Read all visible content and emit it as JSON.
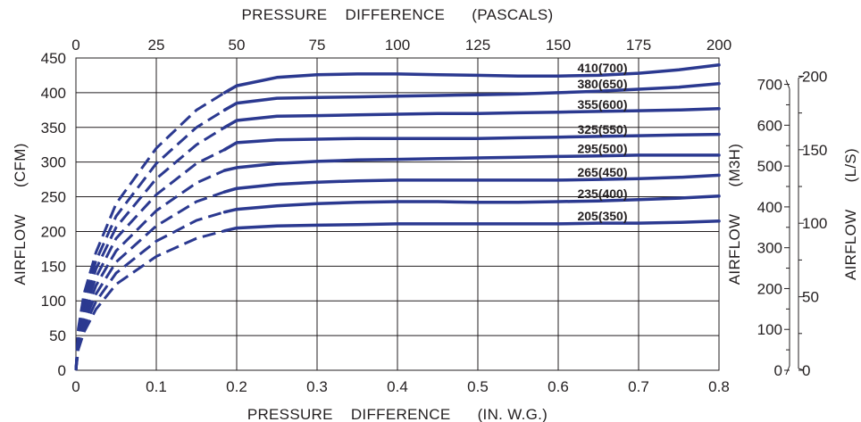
{
  "chart_data": {
    "type": "line",
    "title": "",
    "x_bottom": {
      "label": "PRESSURE    DIFFERENCE      (IN. W.G.)",
      "range": [
        0,
        0.8
      ],
      "ticks": [
        "0",
        "0.1",
        "0.2",
        "0.3",
        "0.4",
        "0.5",
        "0.6",
        "0.7",
        "0.8"
      ]
    },
    "x_top": {
      "label": "PRESSURE    DIFFERENCE      (PASCALS)",
      "range": [
        0,
        200
      ],
      "ticks": [
        "0",
        "25",
        "50",
        "75",
        "100",
        "125",
        "150",
        "175",
        "200"
      ]
    },
    "y_left": {
      "label": "AIRFLOW      (CFM)",
      "range": [
        0,
        450
      ],
      "ticks": [
        "0",
        "50",
        "100",
        "150",
        "200",
        "250",
        "300",
        "350",
        "400",
        "450"
      ]
    },
    "y_right_m3h": {
      "label": "AIRFLOW      (M3H)",
      "range": [
        0,
        764.6
      ],
      "ticks": [
        "0",
        "100",
        "200",
        "300",
        "400",
        "500",
        "600",
        "700"
      ]
    },
    "y_right_ls": {
      "label": "AIRFLOW      (L/S)",
      "range": [
        0,
        212.4
      ],
      "ticks": [
        "0",
        "50",
        "100",
        "150",
        "200"
      ]
    },
    "grid": true,
    "line_color": "#2b3990",
    "grid_color": "#231f20",
    "note": "",
    "series": [
      {
        "name": "410(700)",
        "dashed": {
          "x": [
            0,
            0.003,
            0.01,
            0.025,
            0.05,
            0.1,
            0.15,
            0.185
          ],
          "y": [
            0,
            60,
            110,
            170,
            240,
            320,
            375,
            400
          ]
        },
        "solid": {
          "x": [
            0.185,
            0.2,
            0.25,
            0.3,
            0.35,
            0.4,
            0.45,
            0.5,
            0.55,
            0.6,
            0.65,
            0.7,
            0.75,
            0.8
          ],
          "y": [
            400,
            410,
            422,
            426,
            427,
            427,
            426,
            425,
            424,
            424,
            425,
            428,
            433,
            440
          ]
        }
      },
      {
        "name": "380(650)",
        "dashed": {
          "x": [
            0,
            0.003,
            0.01,
            0.025,
            0.05,
            0.1,
            0.15,
            0.185
          ],
          "y": [
            0,
            55,
            100,
            158,
            222,
            298,
            350,
            375
          ]
        },
        "solid": {
          "x": [
            0.185,
            0.2,
            0.25,
            0.3,
            0.35,
            0.4,
            0.45,
            0.5,
            0.55,
            0.6,
            0.65,
            0.7,
            0.75,
            0.8
          ],
          "y": [
            375,
            385,
            392,
            393,
            394,
            395,
            396,
            397,
            398,
            400,
            402,
            405,
            408,
            413
          ]
        }
      },
      {
        "name": "355(600)",
        "dashed": {
          "x": [
            0,
            0.003,
            0.01,
            0.025,
            0.05,
            0.1,
            0.15,
            0.185
          ],
          "y": [
            0,
            50,
            92,
            146,
            206,
            276,
            325,
            350
          ]
        },
        "solid": {
          "x": [
            0.185,
            0.2,
            0.25,
            0.3,
            0.35,
            0.4,
            0.45,
            0.5,
            0.55,
            0.6,
            0.65,
            0.7,
            0.75,
            0.8
          ],
          "y": [
            350,
            360,
            366,
            367,
            368,
            369,
            370,
            370,
            371,
            372,
            373,
            374,
            375,
            377
          ]
        }
      },
      {
        "name": "325(550)",
        "dashed": {
          "x": [
            0,
            0.003,
            0.01,
            0.025,
            0.05,
            0.1,
            0.15,
            0.185
          ],
          "y": [
            0,
            46,
            84,
            134,
            190,
            253,
            298,
            318
          ]
        },
        "solid": {
          "x": [
            0.185,
            0.2,
            0.25,
            0.3,
            0.35,
            0.4,
            0.45,
            0.5,
            0.55,
            0.6,
            0.65,
            0.7,
            0.75,
            0.8
          ],
          "y": [
            318,
            328,
            332,
            333,
            334,
            334,
            334,
            334,
            335,
            336,
            337,
            338,
            339,
            340
          ]
        }
      },
      {
        "name": "295(500)",
        "dashed": {
          "x": [
            0,
            0.003,
            0.01,
            0.025,
            0.05,
            0.1,
            0.15,
            0.185
          ],
          "y": [
            0,
            42,
            76,
            122,
            172,
            230,
            270,
            288
          ]
        },
        "solid": {
          "x": [
            0.185,
            0.2,
            0.25,
            0.3,
            0.35,
            0.4,
            0.45,
            0.5,
            0.55,
            0.6,
            0.65,
            0.7,
            0.75,
            0.8
          ],
          "y": [
            288,
            292,
            298,
            301,
            303,
            304,
            305,
            306,
            307,
            308,
            309,
            310,
            310,
            310
          ]
        }
      },
      {
        "name": "265(450)",
        "dashed": {
          "x": [
            0,
            0.003,
            0.01,
            0.025,
            0.05,
            0.1,
            0.15,
            0.185
          ],
          "y": [
            0,
            38,
            69,
            110,
            156,
            208,
            243,
            257
          ]
        },
        "solid": {
          "x": [
            0.185,
            0.2,
            0.25,
            0.3,
            0.35,
            0.4,
            0.45,
            0.5,
            0.55,
            0.6,
            0.65,
            0.7,
            0.75,
            0.8
          ],
          "y": [
            257,
            262,
            268,
            271,
            273,
            274,
            274,
            274,
            274,
            274,
            275,
            276,
            278,
            281
          ]
        }
      },
      {
        "name": "235(400)",
        "dashed": {
          "x": [
            0,
            0.003,
            0.01,
            0.025,
            0.05,
            0.1,
            0.15,
            0.185
          ],
          "y": [
            0,
            34,
            62,
            99,
            140,
            186,
            216,
            228
          ]
        },
        "solid": {
          "x": [
            0.185,
            0.2,
            0.25,
            0.3,
            0.35,
            0.4,
            0.45,
            0.5,
            0.55,
            0.6,
            0.65,
            0.7,
            0.75,
            0.8
          ],
          "y": [
            228,
            232,
            237,
            240,
            242,
            243,
            243,
            242,
            242,
            243,
            244,
            246,
            248,
            251
          ]
        }
      },
      {
        "name": "205(350)",
        "dashed": {
          "x": [
            0,
            0.003,
            0.01,
            0.025,
            0.05,
            0.1,
            0.15,
            0.185
          ],
          "y": [
            0,
            30,
            55,
            88,
            124,
            164,
            190,
            201
          ]
        },
        "solid": {
          "x": [
            0.185,
            0.2,
            0.25,
            0.3,
            0.35,
            0.4,
            0.45,
            0.5,
            0.55,
            0.6,
            0.65,
            0.7,
            0.75,
            0.8
          ],
          "y": [
            201,
            205,
            208,
            209,
            210,
            211,
            211,
            211,
            211,
            211,
            212,
            212,
            213,
            215
          ]
        }
      }
    ]
  }
}
